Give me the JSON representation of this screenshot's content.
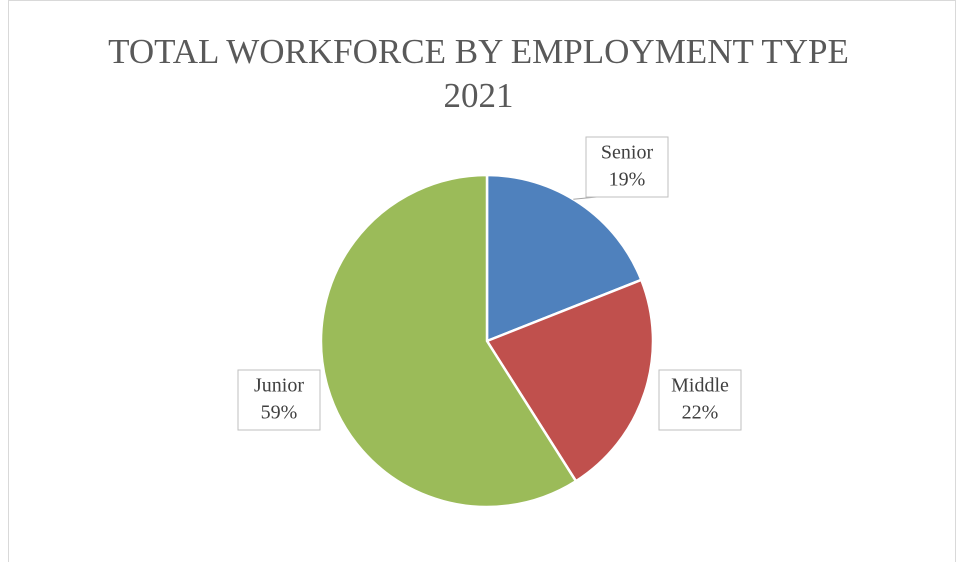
{
  "chart_data": {
    "type": "pie",
    "title": "TOTAL WORKFORCE BY EMPLOYMENT TYPE 2021",
    "categories": [
      "Senior",
      "Middle",
      "Junior"
    ],
    "values": [
      19,
      22,
      59
    ],
    "value_labels": [
      "19%",
      "22%",
      "59%"
    ],
    "colors": [
      "#4f81bd",
      "#c0504d",
      "#9bbb59"
    ]
  }
}
